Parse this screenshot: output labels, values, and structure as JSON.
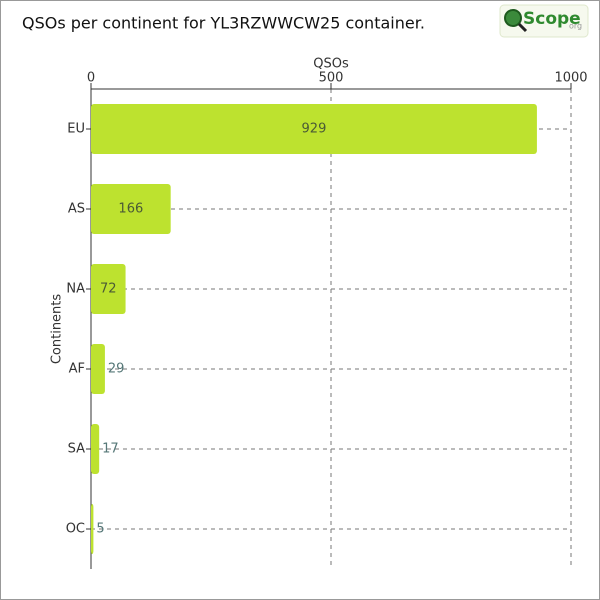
{
  "chart_data": {
    "type": "barh",
    "title": "QSOs per continent for YL3RZWWCW25 container.",
    "xlabel": "QSOs",
    "ylabel": "Continents",
    "categories": [
      "EU",
      "AS",
      "NA",
      "AF",
      "SA",
      "OC"
    ],
    "values": [
      929,
      166,
      72,
      29,
      17,
      5
    ],
    "color": "#bde22f",
    "xlim": [
      0,
      1000
    ],
    "xticks": [
      0,
      500,
      1000
    ],
    "grid": true
  },
  "logo": {
    "name": "Scope",
    "domain": "org"
  }
}
